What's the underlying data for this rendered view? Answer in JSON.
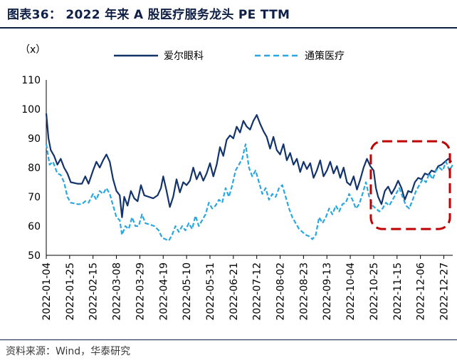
{
  "header": {
    "title": "图表36：  2022 年来 A 股医疗服务龙头 PE TTM"
  },
  "footer": {
    "source": "资料来源：Wind，华泰研究"
  },
  "colors": {
    "series1": "#13336b",
    "series2": "#29a7e0",
    "highlight": "#c00000"
  },
  "chart_data": {
    "type": "line",
    "title": "2022 年来 A 股医疗服务龙头 PE TTM",
    "unit_label": "（x）",
    "ylim": [
      50,
      110
    ],
    "yticks": [
      50,
      60,
      70,
      80,
      90,
      100,
      110
    ],
    "xtick_labels": [
      "2022-01-04",
      "2022-01-25",
      "2022-02-15",
      "2022-03-08",
      "2022-03-29",
      "2022-04-19",
      "2022-05-10",
      "2022-05-31",
      "2022-06-21",
      "2022-07-12",
      "2022-08-02",
      "2022-08-23",
      "2022-09-13",
      "2022-10-04",
      "2022-10-25",
      "2022-11-15",
      "2022-12-06",
      "2022-12-27"
    ],
    "x_range": [
      "2022-01-04",
      "2023-01-04"
    ],
    "legend_position": "top",
    "series": [
      {
        "name": "爱尔眼科",
        "style": "solid",
        "points": [
          [
            "2022-01-04",
            98.5
          ],
          [
            "2022-01-06",
            90
          ],
          [
            "2022-01-08",
            86
          ],
          [
            "2022-01-11",
            84
          ],
          [
            "2022-01-14",
            81
          ],
          [
            "2022-01-17",
            83
          ],
          [
            "2022-01-20",
            80
          ],
          [
            "2022-01-23",
            78
          ],
          [
            "2022-01-26",
            75
          ],
          [
            "2022-02-01",
            74.5
          ],
          [
            "2022-02-05",
            74.5
          ],
          [
            "2022-02-08",
            77
          ],
          [
            "2022-02-11",
            74.5
          ],
          [
            "2022-02-15",
            79
          ],
          [
            "2022-02-18",
            82
          ],
          [
            "2022-02-21",
            80
          ],
          [
            "2022-02-24",
            82.5
          ],
          [
            "2022-02-27",
            84.5
          ],
          [
            "2022-03-02",
            82
          ],
          [
            "2022-03-05",
            76
          ],
          [
            "2022-03-08",
            72
          ],
          [
            "2022-03-11",
            70.5
          ],
          [
            "2022-03-13",
            63
          ],
          [
            "2022-03-15",
            70
          ],
          [
            "2022-03-18",
            67
          ],
          [
            "2022-03-21",
            72
          ],
          [
            "2022-03-24",
            69.5
          ],
          [
            "2022-03-27",
            68.5
          ],
          [
            "2022-03-30",
            74
          ],
          [
            "2022-04-02",
            70.5
          ],
          [
            "2022-04-06",
            70
          ],
          [
            "2022-04-10",
            69.5
          ],
          [
            "2022-04-14",
            70.5
          ],
          [
            "2022-04-17",
            73
          ],
          [
            "2022-04-19",
            77
          ],
          [
            "2022-04-22",
            72
          ],
          [
            "2022-04-25",
            66.5
          ],
          [
            "2022-04-28",
            70
          ],
          [
            "2022-05-01",
            76
          ],
          [
            "2022-05-04",
            71.5
          ],
          [
            "2022-05-07",
            75
          ],
          [
            "2022-05-10",
            74
          ],
          [
            "2022-05-13",
            75.5
          ],
          [
            "2022-05-16",
            80
          ],
          [
            "2022-05-19",
            76
          ],
          [
            "2022-05-22",
            78.5
          ],
          [
            "2022-05-25",
            75.5
          ],
          [
            "2022-05-28",
            78
          ],
          [
            "2022-05-31",
            81.5
          ],
          [
            "2022-06-03",
            77
          ],
          [
            "2022-06-06",
            81
          ],
          [
            "2022-06-09",
            87
          ],
          [
            "2022-06-12",
            84
          ],
          [
            "2022-06-15",
            89.5
          ],
          [
            "2022-06-18",
            91
          ],
          [
            "2022-06-21",
            90
          ],
          [
            "2022-06-24",
            94
          ],
          [
            "2022-06-27",
            92
          ],
          [
            "2022-06-30",
            96
          ],
          [
            "2022-07-03",
            94
          ],
          [
            "2022-07-06",
            93
          ],
          [
            "2022-07-09",
            96
          ],
          [
            "2022-07-12",
            98
          ],
          [
            "2022-07-15",
            95
          ],
          [
            "2022-07-18",
            92.5
          ],
          [
            "2022-07-21",
            90.5
          ],
          [
            "2022-07-24",
            86.5
          ],
          [
            "2022-07-27",
            90.5
          ],
          [
            "2022-07-30",
            86
          ],
          [
            "2022-08-02",
            84.5
          ],
          [
            "2022-08-05",
            88
          ],
          [
            "2022-08-08",
            82.5
          ],
          [
            "2022-08-11",
            85
          ],
          [
            "2022-08-14",
            81
          ],
          [
            "2022-08-17",
            83
          ],
          [
            "2022-08-20",
            78.5
          ],
          [
            "2022-08-23",
            82
          ],
          [
            "2022-08-26",
            79.5
          ],
          [
            "2022-08-29",
            81.5
          ],
          [
            "2022-09-01",
            76.5
          ],
          [
            "2022-09-04",
            79
          ],
          [
            "2022-09-07",
            82.5
          ],
          [
            "2022-09-10",
            77
          ],
          [
            "2022-09-13",
            79
          ],
          [
            "2022-09-16",
            82
          ],
          [
            "2022-09-19",
            78
          ],
          [
            "2022-09-22",
            80.5
          ],
          [
            "2022-09-25",
            76.5
          ],
          [
            "2022-09-28",
            80
          ],
          [
            "2022-10-01",
            75
          ],
          [
            "2022-10-04",
            74
          ],
          [
            "2022-10-07",
            77
          ],
          [
            "2022-10-10",
            72.5
          ],
          [
            "2022-10-13",
            76
          ],
          [
            "2022-10-16",
            80
          ],
          [
            "2022-10-19",
            83
          ],
          [
            "2022-10-22",
            80.5
          ],
          [
            "2022-10-25",
            79
          ],
          [
            "2022-10-27",
            73
          ],
          [
            "2022-10-29",
            70
          ],
          [
            "2022-11-01",
            67.5
          ],
          [
            "2022-11-04",
            72
          ],
          [
            "2022-11-07",
            73.5
          ],
          [
            "2022-11-10",
            71
          ],
          [
            "2022-11-13",
            73
          ],
          [
            "2022-11-16",
            75.5
          ],
          [
            "2022-11-19",
            73
          ],
          [
            "2022-11-22",
            69
          ],
          [
            "2022-11-25",
            72
          ],
          [
            "2022-11-28",
            71.5
          ],
          [
            "2022-12-01",
            75
          ],
          [
            "2022-12-04",
            76.5
          ],
          [
            "2022-12-07",
            76
          ],
          [
            "2022-12-10",
            78
          ],
          [
            "2022-12-13",
            77.5
          ],
          [
            "2022-12-16",
            79
          ],
          [
            "2022-12-19",
            78.5
          ],
          [
            "2022-12-22",
            80.5
          ],
          [
            "2022-12-25",
            81
          ],
          [
            "2022-12-28",
            82
          ],
          [
            "2022-12-31",
            83
          ],
          [
            "2023-01-03",
            82
          ]
        ]
      },
      {
        "name": "通策医疗",
        "style": "dashed",
        "points": [
          [
            "2022-01-04",
            88
          ],
          [
            "2022-01-07",
            81
          ],
          [
            "2022-01-10",
            82
          ],
          [
            "2022-01-14",
            78
          ],
          [
            "2022-01-17",
            77.5
          ],
          [
            "2022-01-20",
            75
          ],
          [
            "2022-01-23",
            70
          ],
          [
            "2022-01-26",
            68
          ],
          [
            "2022-02-01",
            67.5
          ],
          [
            "2022-02-05",
            67.5
          ],
          [
            "2022-02-08",
            68.5
          ],
          [
            "2022-02-11",
            68
          ],
          [
            "2022-02-15",
            71
          ],
          [
            "2022-02-18",
            69
          ],
          [
            "2022-02-21",
            72
          ],
          [
            "2022-02-24",
            71
          ],
          [
            "2022-02-27",
            73
          ],
          [
            "2022-03-02",
            71
          ],
          [
            "2022-03-05",
            67
          ],
          [
            "2022-03-08",
            63
          ],
          [
            "2022-03-11",
            62
          ],
          [
            "2022-03-13",
            57
          ],
          [
            "2022-03-16",
            60
          ],
          [
            "2022-03-19",
            59
          ],
          [
            "2022-03-22",
            63
          ],
          [
            "2022-03-25",
            60
          ],
          [
            "2022-03-28",
            60
          ],
          [
            "2022-03-31",
            64
          ],
          [
            "2022-04-03",
            61
          ],
          [
            "2022-04-07",
            60.5
          ],
          [
            "2022-04-11",
            60
          ],
          [
            "2022-04-15",
            58.5
          ],
          [
            "2022-04-18",
            56
          ],
          [
            "2022-04-21",
            55.5
          ],
          [
            "2022-04-24",
            55
          ],
          [
            "2022-04-27",
            57
          ],
          [
            "2022-04-30",
            60
          ],
          [
            "2022-05-03",
            58
          ],
          [
            "2022-05-06",
            60
          ],
          [
            "2022-05-09",
            58.5
          ],
          [
            "2022-05-12",
            61
          ],
          [
            "2022-05-15",
            59
          ],
          [
            "2022-05-18",
            63.5
          ],
          [
            "2022-05-21",
            60
          ],
          [
            "2022-05-24",
            62
          ],
          [
            "2022-05-27",
            64
          ],
          [
            "2022-05-30",
            68
          ],
          [
            "2022-06-02",
            66
          ],
          [
            "2022-06-05",
            67
          ],
          [
            "2022-06-08",
            69
          ],
          [
            "2022-06-11",
            68
          ],
          [
            "2022-06-14",
            73
          ],
          [
            "2022-06-17",
            70
          ],
          [
            "2022-06-20",
            74
          ],
          [
            "2022-06-23",
            79
          ],
          [
            "2022-06-26",
            81
          ],
          [
            "2022-06-29",
            83
          ],
          [
            "2022-07-02",
            88
          ],
          [
            "2022-07-05",
            80
          ],
          [
            "2022-07-08",
            77
          ],
          [
            "2022-07-11",
            79
          ],
          [
            "2022-07-14",
            75
          ],
          [
            "2022-07-17",
            71
          ],
          [
            "2022-07-20",
            73
          ],
          [
            "2022-07-23",
            69
          ],
          [
            "2022-07-26",
            71
          ],
          [
            "2022-07-29",
            70
          ],
          [
            "2022-08-01",
            73
          ],
          [
            "2022-08-04",
            74
          ],
          [
            "2022-08-07",
            70
          ],
          [
            "2022-08-10",
            66
          ],
          [
            "2022-08-13",
            63
          ],
          [
            "2022-08-16",
            61
          ],
          [
            "2022-08-19",
            59
          ],
          [
            "2022-08-22",
            58
          ],
          [
            "2022-08-25",
            57
          ],
          [
            "2022-08-28",
            56.5
          ],
          [
            "2022-08-31",
            55.5
          ],
          [
            "2022-09-03",
            57
          ],
          [
            "2022-09-06",
            63
          ],
          [
            "2022-09-09",
            61
          ],
          [
            "2022-09-12",
            63
          ],
          [
            "2022-09-15",
            66
          ],
          [
            "2022-09-18",
            64
          ],
          [
            "2022-09-21",
            67
          ],
          [
            "2022-09-24",
            65
          ],
          [
            "2022-09-27",
            67.5
          ],
          [
            "2022-09-30",
            68
          ],
          [
            "2022-10-03",
            71
          ],
          [
            "2022-10-06",
            69
          ],
          [
            "2022-10-09",
            66
          ],
          [
            "2022-10-12",
            67.5
          ],
          [
            "2022-10-15",
            71
          ],
          [
            "2022-10-18",
            75
          ],
          [
            "2022-10-21",
            70
          ],
          [
            "2022-10-24",
            67
          ],
          [
            "2022-10-27",
            66
          ],
          [
            "2022-10-30",
            65
          ],
          [
            "2022-11-02",
            66
          ],
          [
            "2022-11-05",
            68
          ],
          [
            "2022-11-08",
            67
          ],
          [
            "2022-11-11",
            69
          ],
          [
            "2022-11-14",
            71
          ],
          [
            "2022-11-17",
            73
          ],
          [
            "2022-11-20",
            70
          ],
          [
            "2022-11-23",
            67
          ],
          [
            "2022-11-26",
            66
          ],
          [
            "2022-11-29",
            69
          ],
          [
            "2022-12-02",
            72
          ],
          [
            "2022-12-05",
            74
          ],
          [
            "2022-12-08",
            76
          ],
          [
            "2022-12-11",
            75
          ],
          [
            "2022-12-14",
            78
          ],
          [
            "2022-12-17",
            76
          ],
          [
            "2022-12-20",
            79
          ],
          [
            "2022-12-23",
            80
          ],
          [
            "2022-12-26",
            79
          ],
          [
            "2022-12-29",
            82
          ],
          [
            "2023-01-01",
            79
          ],
          [
            "2023-01-04",
            81
          ]
        ]
      }
    ],
    "annotation": {
      "type": "dashed-rectangle",
      "x_from": "2022-10-25",
      "x_to": "2023-01-04",
      "y_from": 59,
      "y_to": 89,
      "color": "#c00000"
    }
  }
}
